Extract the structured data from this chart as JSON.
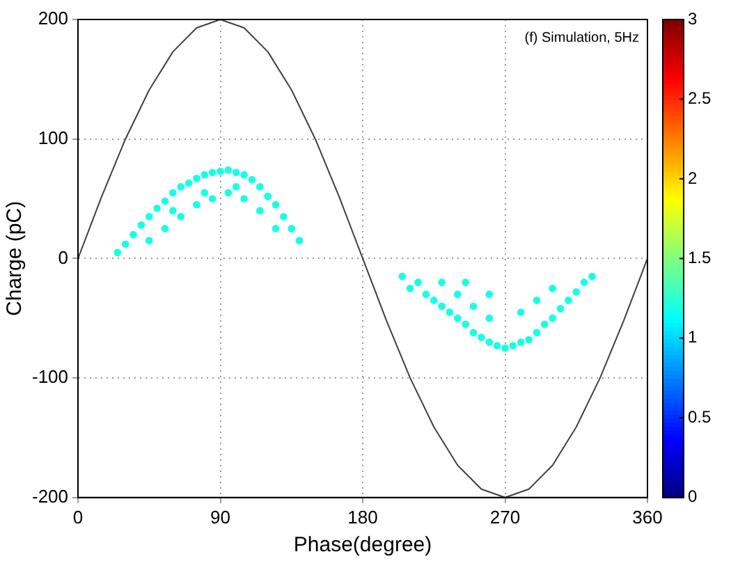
{
  "chart_data": {
    "type": "scatter",
    "xlabel": "Phase(degree)",
    "ylabel": "Charge (pC)",
    "annotations": [
      "(f) Simulation, 5Hz"
    ],
    "xlim": [
      0,
      360
    ],
    "xticks": [
      0,
      90,
      180,
      270,
      360
    ],
    "ylim": [
      -200,
      200
    ],
    "yticks": [
      -200,
      -100,
      0,
      100,
      200
    ],
    "grid": true,
    "legend": false,
    "clim": [
      0,
      3
    ],
    "cticks": [
      0,
      0.5,
      1,
      1.5,
      2,
      2.5,
      3
    ],
    "series": [
      {
        "type": "line",
        "color": "#404040",
        "marker": "none",
        "line_style": "solid",
        "x": [
          0,
          15,
          30,
          45,
          60,
          75,
          90,
          105,
          120,
          135,
          150,
          165,
          180,
          195,
          210,
          225,
          240,
          255,
          270,
          285,
          300,
          315,
          330,
          345,
          360
        ],
        "values": [
          0,
          52,
          100,
          141,
          173,
          193,
          200,
          193,
          173,
          141,
          100,
          52,
          0,
          -52,
          -100,
          -141,
          -173,
          -193,
          -200,
          -193,
          -173,
          -141,
          -100,
          -52,
          0
        ]
      },
      {
        "marker": "circle",
        "x": [
          25,
          30,
          35,
          40,
          45,
          50,
          55,
          60,
          65,
          70,
          75,
          80,
          85,
          90,
          95,
          100,
          105,
          110,
          115,
          120,
          125,
          130,
          135,
          140,
          45,
          55,
          65,
          75,
          85,
          95,
          105,
          115,
          125,
          60,
          80,
          100,
          205,
          210,
          215,
          220,
          225,
          230,
          235,
          240,
          245,
          250,
          255,
          260,
          265,
          270,
          275,
          280,
          285,
          290,
          295,
          300,
          305,
          310,
          315,
          320,
          325,
          230,
          240,
          250,
          260,
          280,
          290,
          300,
          260,
          245
        ],
        "values": [
          5,
          12,
          20,
          28,
          35,
          42,
          48,
          55,
          60,
          63,
          67,
          70,
          72,
          73,
          74,
          72,
          70,
          66,
          60,
          52,
          45,
          35,
          25,
          15,
          15,
          25,
          35,
          45,
          50,
          55,
          50,
          40,
          25,
          40,
          55,
          60,
          -15,
          -25,
          -20,
          -30,
          -35,
          -40,
          -45,
          -50,
          -55,
          -62,
          -66,
          -70,
          -73,
          -75,
          -73,
          -70,
          -68,
          -62,
          -55,
          -50,
          -42,
          -35,
          -28,
          -20,
          -15,
          -20,
          -30,
          -40,
          -50,
          -45,
          -35,
          -25,
          -30,
          -20
        ],
        "cvalues": [
          1.2,
          1.2,
          1.2,
          1.2,
          1.2,
          1.2,
          1.2,
          1.2,
          1.2,
          1.2,
          1.2,
          1.2,
          1.2,
          1.2,
          1.2,
          1.2,
          1.2,
          1.2,
          1.2,
          1.2,
          1.2,
          1.2,
          1.2,
          1.2,
          1.2,
          1.2,
          1.2,
          1.2,
          1.2,
          1.2,
          1.2,
          1.2,
          1.2,
          1.2,
          1.2,
          1.2,
          1.2,
          1.2,
          1.2,
          1.2,
          1.2,
          1.2,
          1.2,
          1.2,
          1.2,
          1.2,
          1.2,
          1.2,
          1.2,
          1.2,
          1.2,
          1.2,
          1.2,
          1.2,
          1.2,
          1.2,
          1.2,
          1.2,
          1.2,
          1.2,
          1.2,
          1.2,
          1.2,
          1.2,
          1.2,
          1.2,
          1.2,
          1.2,
          1.2,
          1.2
        ]
      }
    ]
  }
}
